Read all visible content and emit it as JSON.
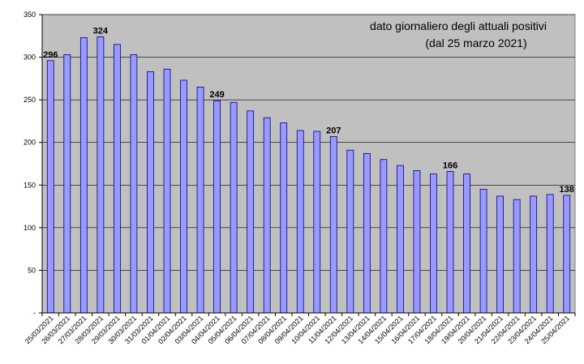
{
  "chart_data": {
    "type": "bar",
    "title_lines": [
      "dato giornaliero degli attuali positivi",
      "(dal 25 marzo 2021)"
    ],
    "xlabel": "",
    "ylabel": "",
    "ylim": [
      0,
      350
    ],
    "y_ticks": [
      {
        "value": 0,
        "label": "-"
      },
      {
        "value": 50,
        "label": "50"
      },
      {
        "value": 100,
        "label": "100"
      },
      {
        "value": 150,
        "label": "150"
      },
      {
        "value": 200,
        "label": "200"
      },
      {
        "value": 250,
        "label": "250"
      },
      {
        "value": 300,
        "label": "300"
      },
      {
        "value": 350,
        "label": "350"
      }
    ],
    "grid": true,
    "categories": [
      "25/03/2021",
      "26/03/2021",
      "27/03/2021",
      "28/03/2021",
      "29/03/2021",
      "30/03/2021",
      "31/03/2021",
      "01/04/2021",
      "02/04/2021",
      "03/04/2021",
      "04/04/2021",
      "05/04/2021",
      "06/04/2021",
      "07/04/2021",
      "08/04/2021",
      "09/04/2021",
      "10/04/2021",
      "11/04/2021",
      "12/04/2021",
      "13/04/2021",
      "14/04/2021",
      "15/04/2021",
      "16/04/2021",
      "17/04/2021",
      "18/04/2021",
      "19/04/2021",
      "20/04/2021",
      "21/04/2021",
      "22/04/2021",
      "23/04/2021",
      "24/04/2021",
      "25/04/2021"
    ],
    "values": [
      296,
      303,
      323,
      324,
      315,
      303,
      283,
      286,
      273,
      265,
      249,
      247,
      237,
      229,
      223,
      214,
      213,
      207,
      191,
      187,
      180,
      173,
      167,
      163,
      166,
      163,
      145,
      137,
      133,
      137,
      139,
      138
    ],
    "data_labels": [
      {
        "index": 0,
        "text": "296"
      },
      {
        "index": 3,
        "text": "324"
      },
      {
        "index": 10,
        "text": "249"
      },
      {
        "index": 17,
        "text": "207"
      },
      {
        "index": 24,
        "text": "166"
      },
      {
        "index": 31,
        "text": "138"
      }
    ],
    "colors": {
      "plot_background": "#c0c0c0",
      "bar_fill": "#9999ff",
      "bar_stroke": "#000080",
      "grid": "#000000"
    }
  }
}
